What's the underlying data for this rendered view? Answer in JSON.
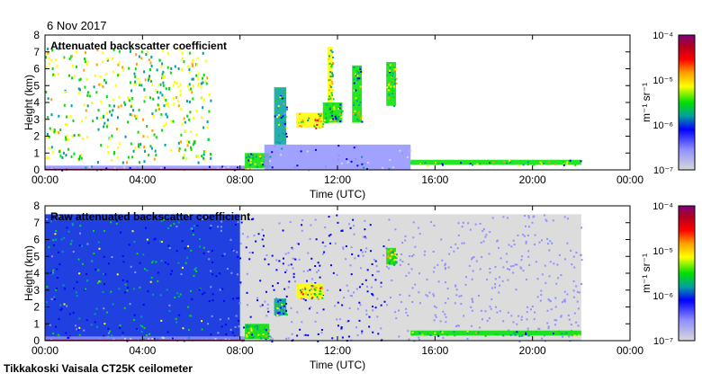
{
  "date_label": "6 Nov 2017",
  "footer": "Tikkakoski Vaisala CT25K ceilometer",
  "chart_data": [
    {
      "type": "heatmap",
      "title": "Attenuated backscatter coefficient",
      "xlabel": "Time (UTC)",
      "ylabel": "Height (km)",
      "xlim": [
        0,
        24
      ],
      "ylim": [
        0,
        8
      ],
      "xticks": [
        "00:00",
        "04:00",
        "08:00",
        "12:00",
        "16:00",
        "20:00",
        "00:00"
      ],
      "yticks": [
        "0",
        "1",
        "2",
        "3",
        "4",
        "5",
        "6",
        "7",
        "8"
      ],
      "noise": "sparse",
      "features": [
        {
          "t": [
            0,
            8.2
          ],
          "h": [
            0,
            0.25
          ],
          "level": -6.5
        },
        {
          "t": [
            8.2,
            9.2
          ],
          "h": [
            0.1,
            1.0
          ],
          "level": -5.5
        },
        {
          "t": [
            9.4,
            9.9
          ],
          "h": [
            1.5,
            4.9
          ],
          "level": -5.8
        },
        {
          "t": [
            10.3,
            11.4
          ],
          "h": [
            2.5,
            3.4
          ],
          "level": -5.3
        },
        {
          "t": [
            11.4,
            12.2
          ],
          "h": [
            2.8,
            4.0
          ],
          "level": -5.6
        },
        {
          "t": [
            11.6,
            11.8
          ],
          "h": [
            4.0,
            7.3
          ],
          "level": -5.4
        },
        {
          "t": [
            12.6,
            13.0
          ],
          "h": [
            2.8,
            6.2
          ],
          "level": -5.6
        },
        {
          "t": [
            14.0,
            14.4
          ],
          "h": [
            3.8,
            6.4
          ],
          "level": -5.5
        },
        {
          "t": [
            9.0,
            15.0
          ],
          "h": [
            0,
            1.5
          ],
          "level": -6.4
        },
        {
          "t": [
            15.0,
            22.0
          ],
          "h": [
            0.3,
            0.6
          ],
          "level": -5.6
        }
      ],
      "colorbar": {
        "label": "m⁻¹ sr⁻¹",
        "ticks": [
          "10⁻⁷",
          "10⁻⁶",
          "10⁻⁵",
          "10⁻⁴"
        ],
        "range_log10": [
          -7,
          -4
        ]
      }
    },
    {
      "type": "heatmap",
      "title": "Raw attenuated backscatter coefficient",
      "xlabel": "Time (UTC)",
      "ylabel": "Height (km)",
      "xlim": [
        0,
        24
      ],
      "ylim": [
        0,
        8
      ],
      "xticks": [
        "00:00",
        "04:00",
        "08:00",
        "12:00",
        "16:00",
        "20:00",
        "00:00"
      ],
      "yticks": [
        "0",
        "1",
        "2",
        "3",
        "4",
        "5",
        "6",
        "7",
        "8"
      ],
      "noise": "dense",
      "noise_extent": {
        "t": [
          0,
          22
        ],
        "h": [
          0,
          7.5
        ]
      },
      "features": [
        {
          "t": [
            0,
            8.2
          ],
          "h": [
            0,
            0.25
          ],
          "level": -6.5
        },
        {
          "t": [
            8.2,
            9.2
          ],
          "h": [
            0.1,
            1.0
          ],
          "level": -5.5
        },
        {
          "t": [
            9.4,
            9.9
          ],
          "h": [
            1.5,
            2.5
          ],
          "level": -5.8
        },
        {
          "t": [
            10.3,
            11.4
          ],
          "h": [
            2.5,
            3.4
          ],
          "level": -5.3
        },
        {
          "t": [
            14.0,
            14.4
          ],
          "h": [
            4.5,
            5.5
          ],
          "level": -5.5
        },
        {
          "t": [
            15.0,
            22.0
          ],
          "h": [
            0.3,
            0.6
          ],
          "level": -5.6
        }
      ],
      "colorbar": {
        "label": "m⁻¹ sr⁻¹",
        "ticks": [
          "10⁻⁷",
          "10⁻⁶",
          "10⁻⁵",
          "10⁻⁴"
        ],
        "range_log10": [
          -7,
          -4
        ]
      }
    }
  ]
}
